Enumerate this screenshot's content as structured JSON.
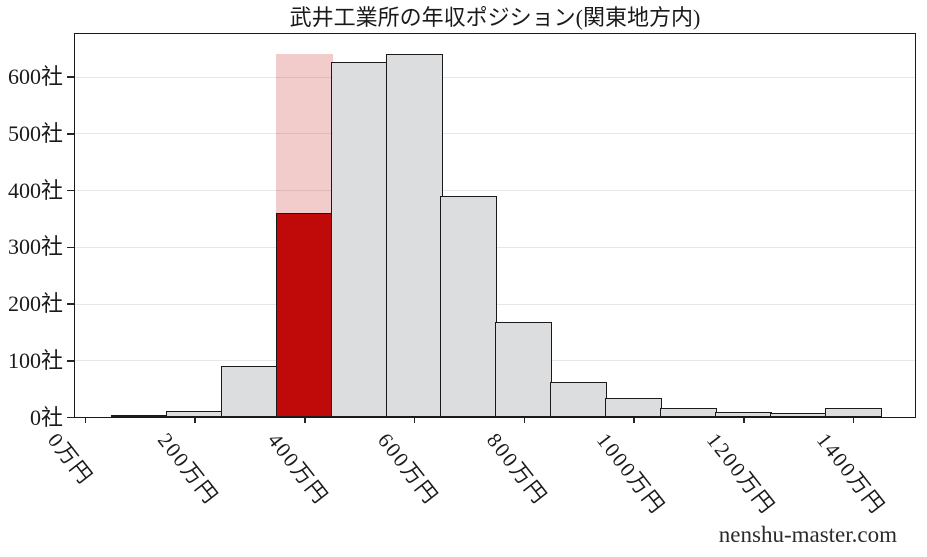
{
  "title": "武井工業所の年収ポジション(関東地方内)",
  "watermark": "nenshu-master.com",
  "colors": {
    "bar_fill": "#dcddde",
    "bar_edge": "#1a1a1a",
    "highlight_fill": "#c00a0a",
    "highlight_band": "rgba(192,10,10,0.21)",
    "grid_line": "#e7e7e7",
    "text": "#1a1a1a"
  },
  "chart_data": {
    "type": "bar",
    "title": "武井工業所の年収ポジション(関東地方内)",
    "xlabel": "",
    "ylabel": "",
    "bin_centers": [
      100,
      200,
      300,
      400,
      500,
      600,
      700,
      800,
      900,
      1000,
      1100,
      1200,
      1300,
      1400
    ],
    "bin_width": 100,
    "values": [
      1,
      10,
      90,
      360,
      625,
      640,
      390,
      168,
      62,
      33,
      16,
      9,
      7,
      16
    ],
    "highlight": {
      "index": 3,
      "bin_center": 400,
      "value": 360,
      "band_value": 640
    },
    "x_ticks": [
      {
        "value": 0,
        "label": "0万円"
      },
      {
        "value": 200,
        "label": "200万円"
      },
      {
        "value": 400,
        "label": "400万円"
      },
      {
        "value": 600,
        "label": "600万円"
      },
      {
        "value": 800,
        "label": "800万円"
      },
      {
        "value": 1000,
        "label": "1000万円"
      },
      {
        "value": 1200,
        "label": "1200万円"
      },
      {
        "value": 1400,
        "label": "1400万円"
      }
    ],
    "y_ticks": [
      {
        "value": 0,
        "label": "0社"
      },
      {
        "value": 100,
        "label": "100社"
      },
      {
        "value": 200,
        "label": "200社"
      },
      {
        "value": 300,
        "label": "300社"
      },
      {
        "value": 400,
        "label": "400社"
      },
      {
        "value": 500,
        "label": "500社"
      },
      {
        "value": 600,
        "label": "600社"
      }
    ],
    "xlim": [
      -18,
      1513
    ],
    "ylim": [
      0,
      675
    ],
    "grid": "horizontal",
    "legend": null
  }
}
